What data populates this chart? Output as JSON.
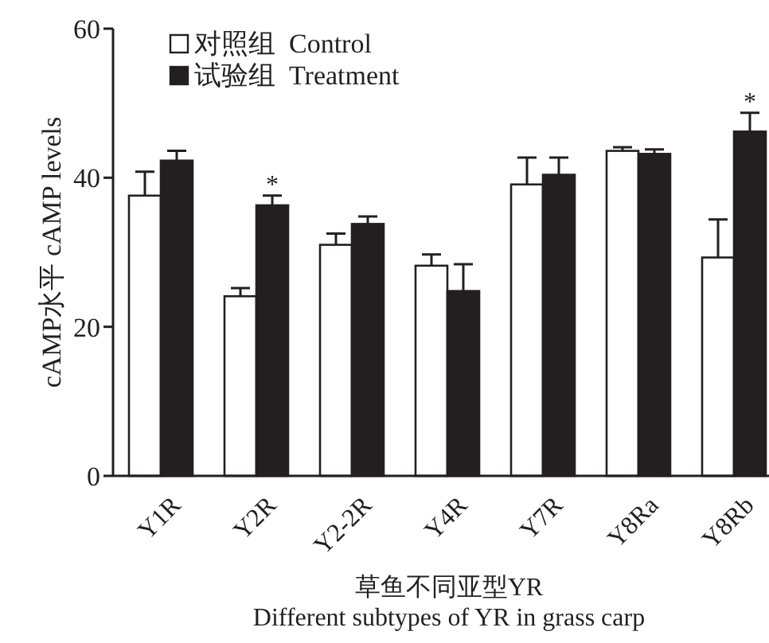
{
  "chart_data": {
    "type": "bar",
    "categories": [
      "Y1R",
      "Y2R",
      "Y2-2R",
      "Y4R",
      "Y7R",
      "Y8Ra",
      "Y8Rb"
    ],
    "series": [
      {
        "name": "对照组  Control",
        "color": "#ffffff",
        "values": [
          37.6,
          24.1,
          31.0,
          28.2,
          39.1,
          43.6,
          29.3
        ],
        "errors": [
          3.2,
          1.1,
          1.5,
          1.5,
          3.6,
          0.5,
          5.1
        ]
      },
      {
        "name": "试验组  Treatment",
        "color": "#231f20",
        "values": [
          42.3,
          36.3,
          33.8,
          24.8,
          40.4,
          43.2,
          46.2
        ],
        "errors": [
          1.3,
          1.3,
          1.0,
          3.6,
          2.3,
          0.6,
          2.5
        ]
      }
    ],
    "xlabel": "草鱼不同亚型YR\nDifferent subtypes of YR in grass carp",
    "ylabel": "cAMP水平 cAMP levels",
    "ylim": [
      0,
      60
    ],
    "yticks": [
      0,
      20,
      40,
      60
    ],
    "annotations": [
      {
        "text": "*",
        "x": "Y2R",
        "y": 37.6
      },
      {
        "text": "*",
        "x": "Y8Rb",
        "y": 48.7
      }
    ],
    "legend": "top left",
    "grid": false
  }
}
